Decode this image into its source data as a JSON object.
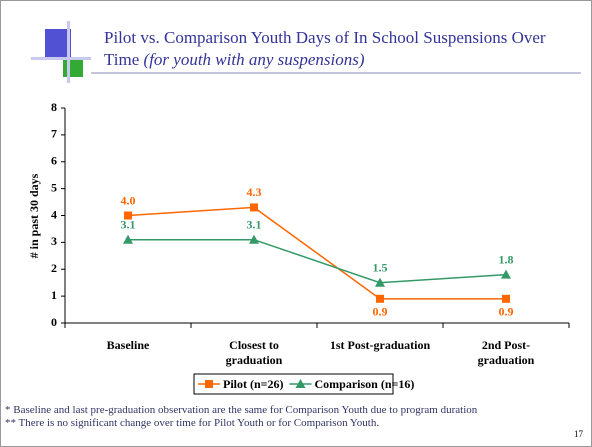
{
  "chart_data": {
    "type": "line",
    "title": "Pilot vs. Comparison Youth Days of In School Suspensions Over Time",
    "subtitle": "(for youth with any suspensions)",
    "y_label": "# in past 30 days",
    "categories": [
      "Baseline",
      "Closest to graduation",
      "1st Post-graduation",
      "2nd Post-graduation"
    ],
    "series": [
      {
        "name": "Pilot (n=26)",
        "color": "#ff6600",
        "marker": "square",
        "values": [
          4.0,
          4.3,
          0.9,
          0.9
        ],
        "value_labels": [
          "4.0",
          "4.3",
          "0.9",
          "0.9"
        ]
      },
      {
        "name": "Comparison (n=16)",
        "color": "#339966",
        "marker": "triangle",
        "values": [
          3.1,
          3.1,
          1.5,
          1.8
        ],
        "value_labels": [
          "3.1",
          "3.1",
          "1.5",
          "1.8"
        ]
      }
    ],
    "ylim": [
      0,
      8
    ],
    "yticks": [
      0,
      1,
      2,
      3,
      4,
      5,
      6,
      7,
      8
    ],
    "grid": false,
    "legend": "bottom"
  },
  "notes": [
    "* Baseline and last pre-graduation observation are the same for Comparison Youth due to program duration",
    "** There is no significant change over time for Pilot Youth or for Comparison Youth."
  ],
  "page_number": "17"
}
